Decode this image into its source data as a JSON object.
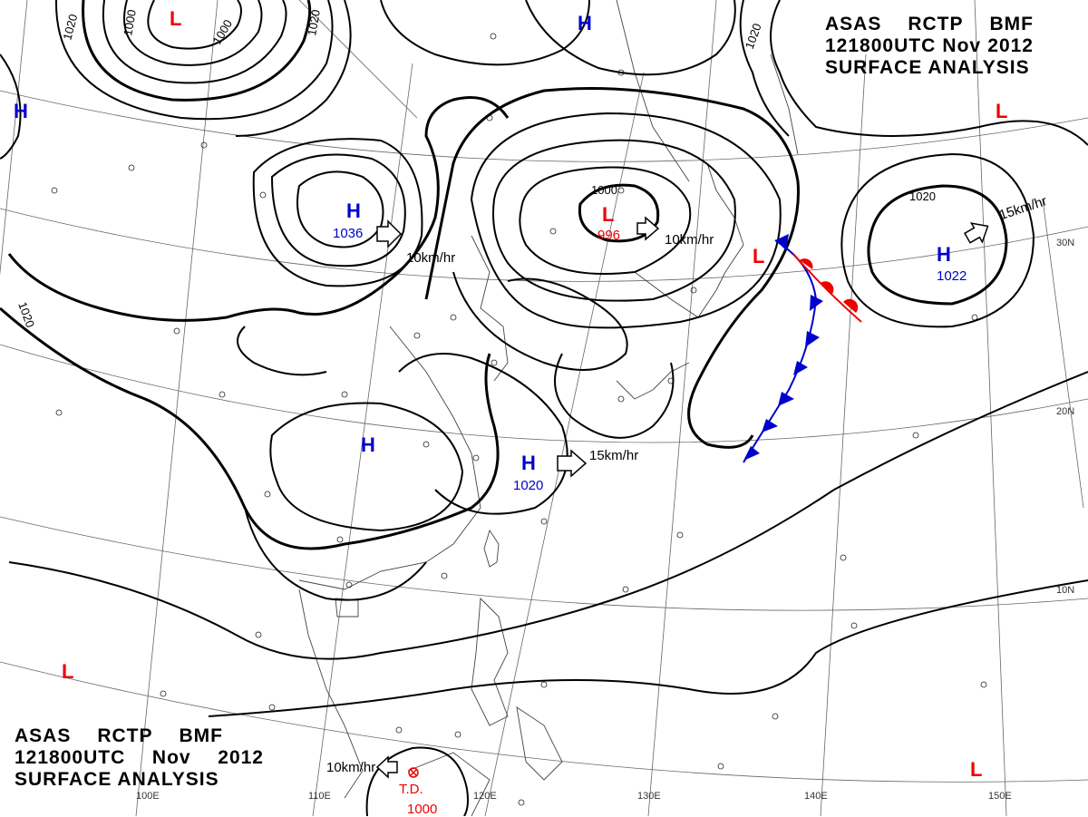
{
  "title": {
    "line1": [
      "ASAS",
      "RCTP",
      "BMF"
    ],
    "line2": [
      "121800UTC",
      "Nov",
      "2012"
    ],
    "line3": "SURFACE ANALYSIS"
  },
  "pressure_systems": [
    {
      "id": "h-nw-edge",
      "type": "H"
    },
    {
      "id": "l-top",
      "type": "L"
    },
    {
      "id": "h-1036",
      "type": "H",
      "value": "1036"
    },
    {
      "id": "h-top-center",
      "type": "H"
    },
    {
      "id": "l-996",
      "type": "L",
      "value": "996"
    },
    {
      "id": "l-front",
      "type": "L"
    },
    {
      "id": "l-ne",
      "type": "L"
    },
    {
      "id": "h-1022",
      "type": "H",
      "value": "1022"
    },
    {
      "id": "h-china",
      "type": "H"
    },
    {
      "id": "h-1020",
      "type": "H",
      "value": "1020"
    },
    {
      "id": "l-sw",
      "type": "L"
    },
    {
      "id": "l-se",
      "type": "L"
    }
  ],
  "movements": [
    {
      "id": "move-1036",
      "label": "10km/hr"
    },
    {
      "id": "move-996",
      "label": "10km/hr"
    },
    {
      "id": "move-1022",
      "label": "15km/hr"
    },
    {
      "id": "move-1020",
      "label": "15km/hr"
    },
    {
      "id": "move-td",
      "label": "10km/hr"
    }
  ],
  "tropical_depression": {
    "label": "T.D.",
    "value": "1000"
  },
  "isobar_labels": [
    "1020",
    "1000",
    "1000",
    "1020",
    "1020",
    "1000",
    "1020",
    "1020"
  ],
  "latitude_labels": [
    "30N",
    "20N",
    "10N"
  ],
  "longitude_labels": [
    "100E",
    "110E",
    "120E",
    "130E",
    "140E",
    "150E"
  ],
  "colors": {
    "high": "#0000cc",
    "low": "#ee0000",
    "cold_front": "#0000cc",
    "warm_front": "#ee0000",
    "isobar": "#000000",
    "grid": "#555555"
  }
}
